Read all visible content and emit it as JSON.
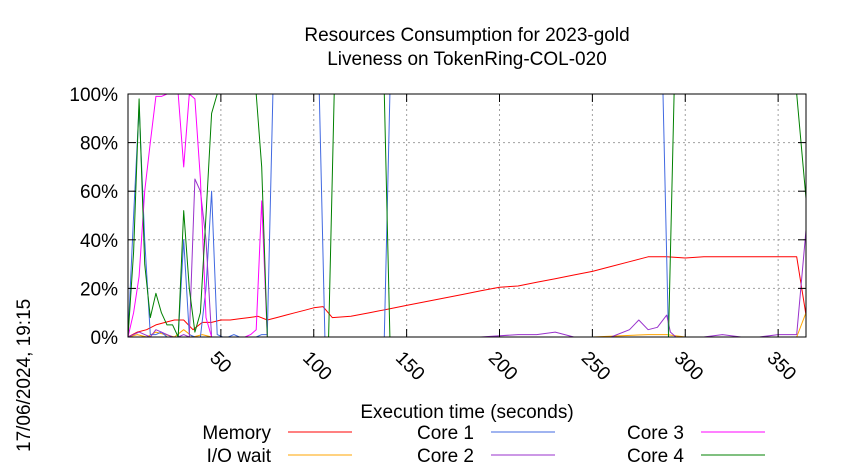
{
  "chart_data": {
    "type": "line",
    "title_line1": "Resources Consumption for 2023-gold",
    "title_line2": "Liveness on TokenRing-COL-020",
    "xlabel": "Execution time (seconds)",
    "ylabel": "",
    "timestamp": "17/06/2024, 19:15",
    "xlim": [
      0,
      365
    ],
    "ylim": [
      0,
      100
    ],
    "x_ticks": [
      50,
      100,
      150,
      200,
      250,
      300,
      350
    ],
    "y_ticks": [
      0,
      20,
      40,
      60,
      80,
      100
    ],
    "y_tick_labels": [
      "0%",
      "20%",
      "40%",
      "60%",
      "80%",
      "100%"
    ],
    "grid": true,
    "legend_position": "bottom",
    "series": [
      {
        "name": "Memory",
        "color": "#ff0000",
        "x": [
          0,
          5,
          10,
          15,
          20,
          25,
          30,
          35,
          40,
          45,
          50,
          55,
          60,
          65,
          70,
          75,
          80,
          85,
          90,
          95,
          100,
          105,
          110,
          120,
          130,
          140,
          150,
          160,
          170,
          180,
          190,
          200,
          210,
          220,
          230,
          240,
          250,
          260,
          270,
          280,
          290,
          300,
          310,
          320,
          330,
          340,
          350,
          360,
          365
        ],
        "values": [
          0,
          2,
          3,
          5,
          6,
          7,
          7,
          3,
          6,
          6,
          7,
          7,
          7.5,
          8,
          8.5,
          7,
          8,
          9,
          10,
          11,
          12,
          12.5,
          8,
          8.5,
          10,
          11.5,
          13,
          14.5,
          16,
          17.5,
          19,
          20.5,
          21,
          22.5,
          24,
          25.5,
          27,
          29,
          31,
          33,
          33,
          32.5,
          33,
          33,
          33,
          33,
          33,
          33,
          9
        ]
      },
      {
        "name": "I/O wait",
        "color": "#ffa500",
        "x": [
          0,
          5,
          10,
          15,
          20,
          25,
          30,
          35,
          40,
          45,
          50,
          60,
          70,
          80,
          100,
          150,
          200,
          250,
          280,
          290,
          300,
          320,
          350,
          360,
          365
        ],
        "values": [
          0,
          1,
          0,
          2,
          1,
          0,
          3,
          0,
          1,
          0,
          0,
          0,
          0,
          0,
          0,
          0,
          0,
          0,
          1,
          1,
          0,
          0,
          0,
          0,
          10
        ]
      },
      {
        "name": "Core 1",
        "color": "#4169e1",
        "x": [
          0,
          3,
          6,
          9,
          12,
          15,
          18,
          21,
          24,
          27,
          30,
          33,
          36,
          39,
          42,
          45,
          48,
          51,
          54,
          57,
          60,
          63,
          66,
          69,
          72,
          75,
          78,
          81,
          90,
          100,
          103,
          106,
          109,
          115,
          125,
          135,
          138,
          141,
          144,
          150,
          160,
          200,
          250,
          280,
          285,
          288,
          291,
          294,
          300,
          320,
          340,
          360,
          365
        ],
        "values": [
          0,
          50,
          95,
          40,
          1,
          1,
          2,
          0,
          0,
          0,
          40,
          1,
          0,
          0,
          20,
          60,
          1,
          0,
          0,
          1,
          0,
          0,
          0,
          0,
          1,
          1,
          100,
          100,
          100,
          100,
          100,
          0,
          0,
          0,
          0,
          0,
          0,
          100,
          100,
          100,
          100,
          100,
          100,
          100,
          100,
          100,
          0,
          0,
          0,
          0,
          0,
          0,
          0
        ]
      },
      {
        "name": "Core 2",
        "color": "#9932cc",
        "x": [
          0,
          3,
          6,
          9,
          12,
          15,
          18,
          21,
          24,
          27,
          30,
          33,
          36,
          39,
          42,
          45,
          48,
          51,
          54,
          60,
          70,
          90,
          110,
          130,
          150,
          170,
          190,
          210,
          220,
          230,
          240,
          250,
          260,
          270,
          275,
          280,
          285,
          290,
          292,
          295,
          300,
          310,
          320,
          330,
          340,
          350,
          360,
          365
        ],
        "values": [
          0,
          1,
          2,
          1,
          0,
          3,
          2,
          1,
          0,
          0,
          1,
          0,
          65,
          60,
          40,
          0,
          0,
          0,
          0,
          0,
          0,
          0,
          0,
          0,
          0,
          0,
          0,
          1,
          1,
          2,
          0,
          0,
          0,
          3,
          7,
          3,
          4,
          9,
          2,
          0,
          0,
          0,
          1,
          0,
          0,
          1,
          1,
          44
        ]
      },
      {
        "name": "Core 3",
        "color": "#ff00ff",
        "x": [
          0,
          3,
          6,
          9,
          12,
          15,
          18,
          21,
          24,
          27,
          30,
          33,
          36,
          39,
          42,
          45,
          48,
          51,
          54,
          57,
          60,
          63,
          66,
          69,
          72,
          75,
          78,
          81,
          90,
          110,
          150,
          200,
          250,
          300,
          350,
          365
        ],
        "values": [
          0,
          10,
          25,
          60,
          80,
          99,
          99,
          100,
          100,
          100,
          70,
          100,
          98,
          65,
          8,
          0,
          0,
          0,
          0,
          0,
          0,
          0,
          1,
          3,
          56,
          0,
          0,
          0,
          0,
          0,
          0,
          0,
          0,
          0,
          0,
          0
        ]
      },
      {
        "name": "Core 4",
        "color": "#008000",
        "x": [
          0,
          3,
          6,
          9,
          12,
          15,
          18,
          21,
          24,
          27,
          30,
          33,
          36,
          39,
          42,
          45,
          48,
          51,
          54,
          57,
          60,
          63,
          66,
          69,
          72,
          75,
          78,
          100,
          105,
          108,
          111,
          130,
          135,
          138,
          141,
          144,
          150,
          280,
          285,
          288,
          291,
          294,
          300,
          320,
          340,
          360,
          365
        ],
        "values": [
          0,
          35,
          98,
          30,
          8,
          18,
          10,
          5,
          5,
          0,
          52,
          20,
          2,
          10,
          50,
          92,
          100,
          100,
          100,
          100,
          100,
          100,
          100,
          100,
          70,
          0,
          0,
          0,
          0,
          0,
          100,
          100,
          100,
          100,
          0,
          0,
          0,
          0,
          0,
          0,
          0,
          100,
          100,
          100,
          100,
          100,
          57
        ]
      }
    ]
  }
}
